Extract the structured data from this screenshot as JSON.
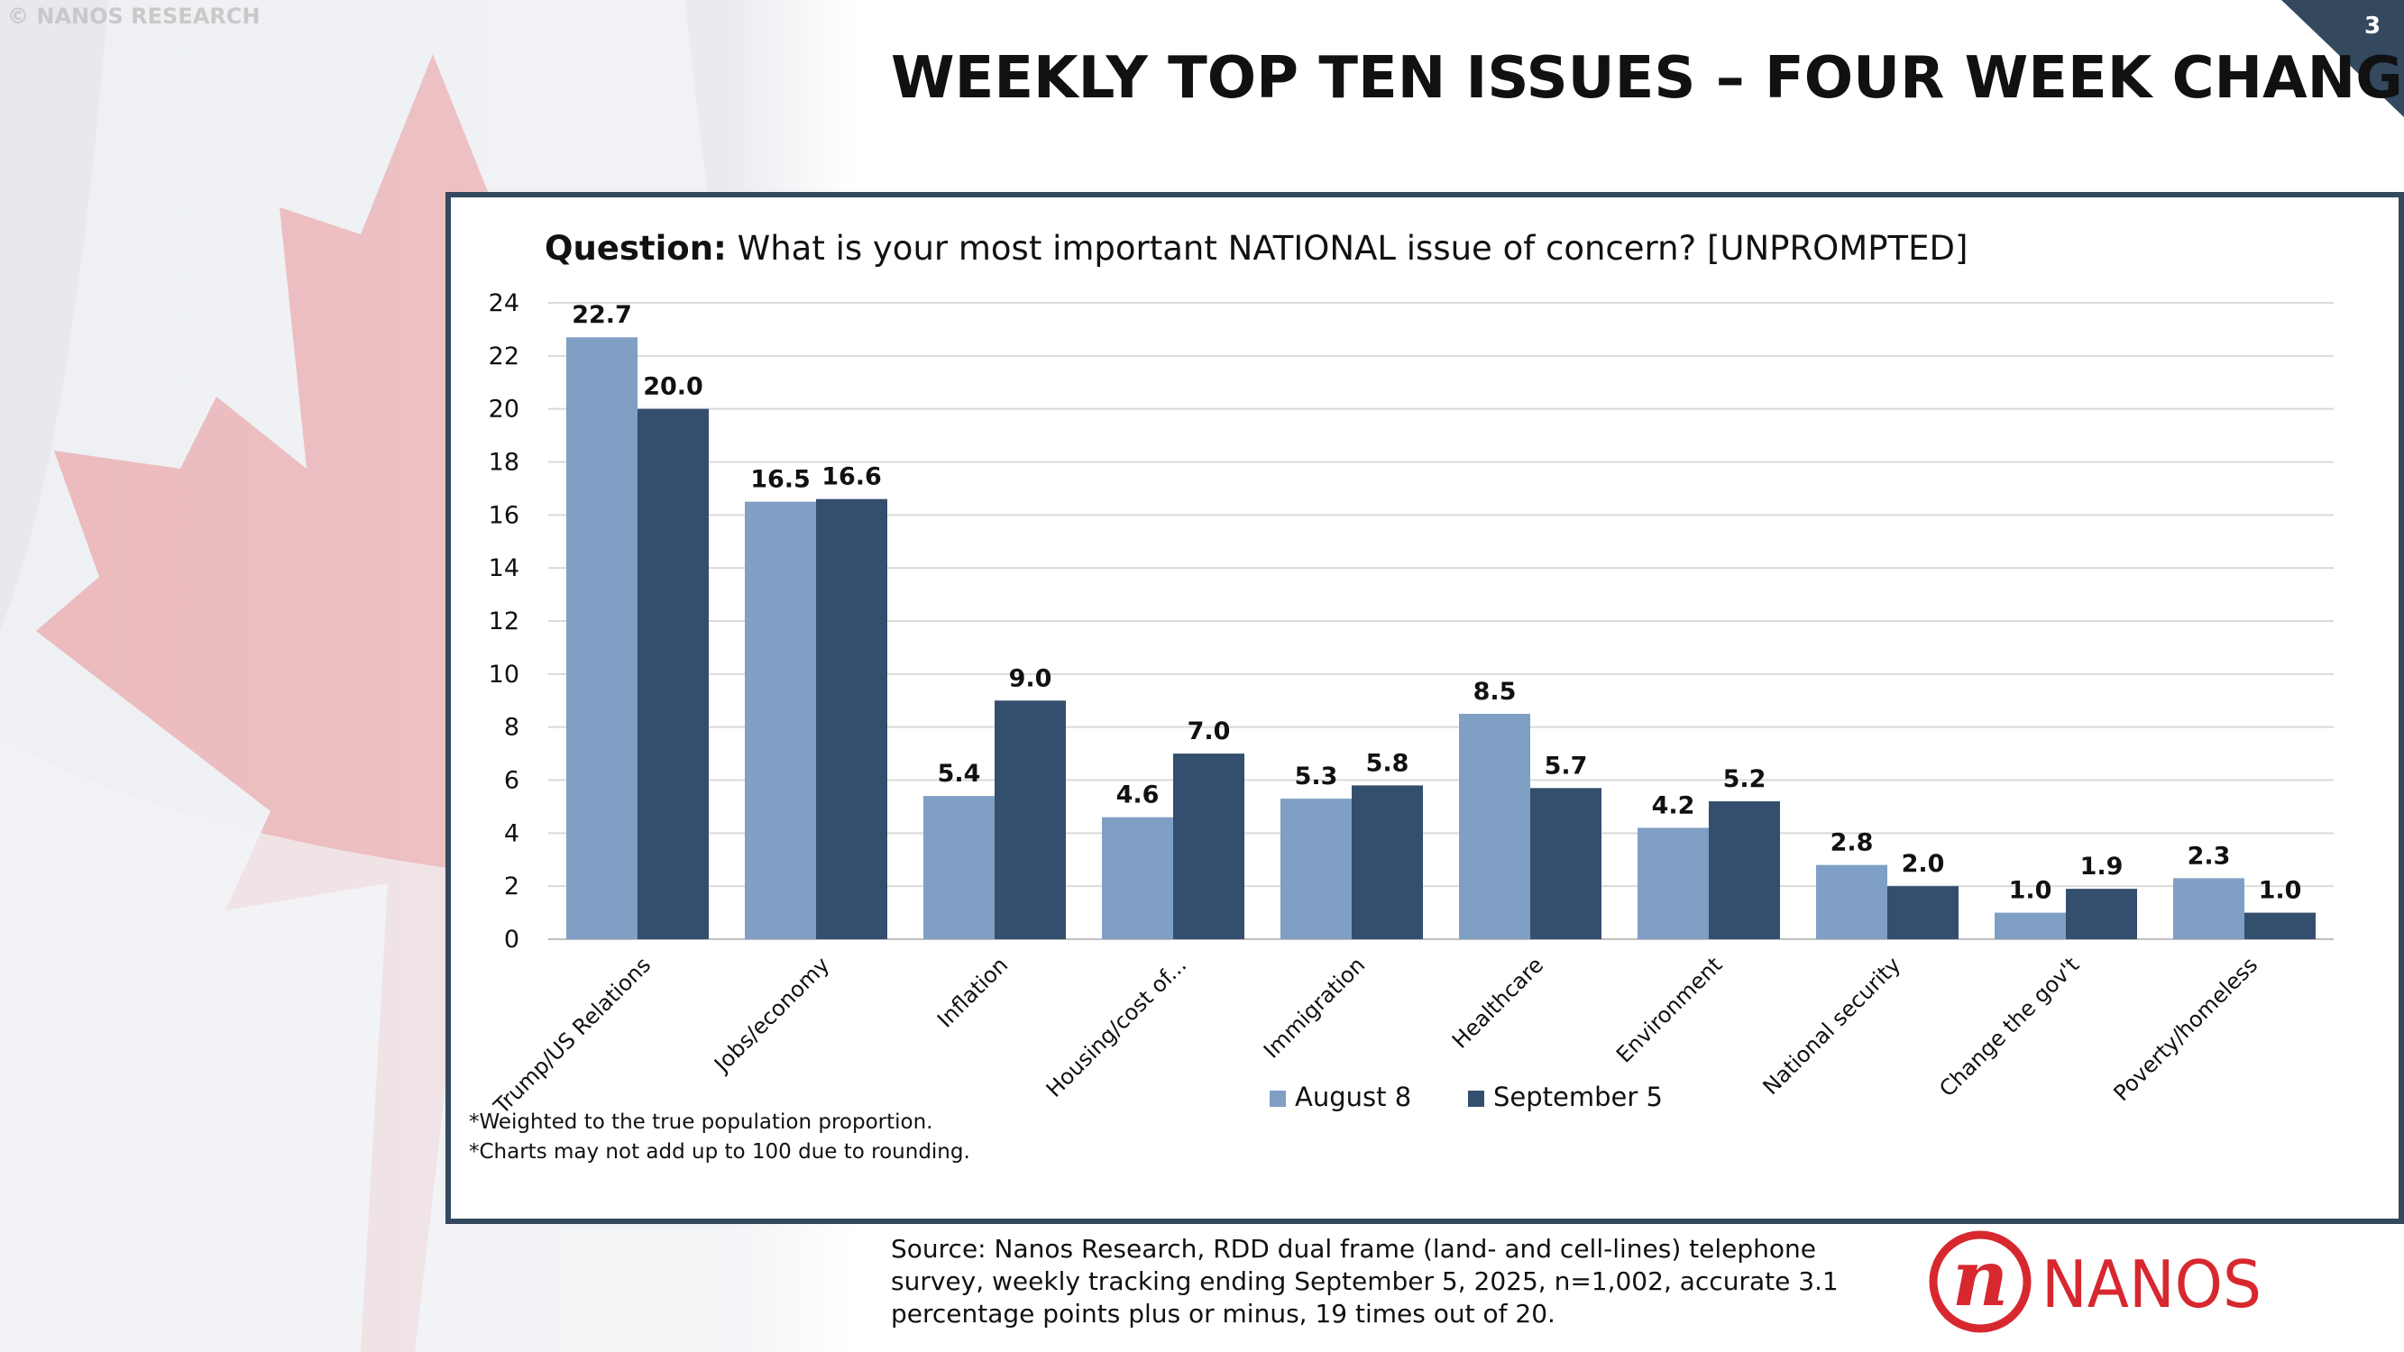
{
  "copyright": "© NANOS RESEARCH",
  "page_title": "WEEKLY TOP TEN ISSUES – FOUR WEEK CHANGE",
  "page_number": "3",
  "question_label": "Question:",
  "question_text": "What is your most important NATIONAL issue of concern? [UNPROMPTED]",
  "notes": [
    "*Weighted to the true population proportion.",
    "*Charts may not add up to 100 due to rounding."
  ],
  "source": "Source: Nanos Research, RDD dual frame (land- and cell-lines) telephone survey, weekly tracking ending September 5, 2025, n=1,002, accurate 3.1 percentage points plus or minus, 19 times out of 20.",
  "logo": {
    "letter": "n",
    "text": "NANOS",
    "color": "#d7282f"
  },
  "colors": {
    "panel_border": "#34495e",
    "series_1": "#7f9fc4",
    "series_2": "#344e6d"
  },
  "chart_data": {
    "type": "bar",
    "title": "",
    "xlabel": "",
    "ylabel": "",
    "categories": [
      "Trump/US Relations",
      "Jobs/economy",
      "Inflation",
      "Housing/cost of...",
      "Immigration",
      "Healthcare",
      "Environment",
      "National security",
      "Change the gov't",
      "Poverty/homeless"
    ],
    "series": [
      {
        "name": "August 8",
        "values": [
          22.7,
          16.5,
          5.4,
          4.6,
          5.3,
          8.5,
          4.2,
          2.8,
          1.0,
          2.3
        ],
        "color": "#7f9fc4"
      },
      {
        "name": "September 5",
        "values": [
          20.0,
          16.6,
          9.0,
          7.0,
          5.8,
          5.7,
          5.2,
          2.0,
          1.9,
          1.0
        ],
        "color": "#344e6d"
      }
    ],
    "ylim": [
      0,
      24
    ],
    "yticks": [
      0,
      2,
      4,
      6,
      8,
      10,
      12,
      14,
      16,
      18,
      20,
      22,
      24
    ],
    "grid": true,
    "legend": "bottom"
  }
}
